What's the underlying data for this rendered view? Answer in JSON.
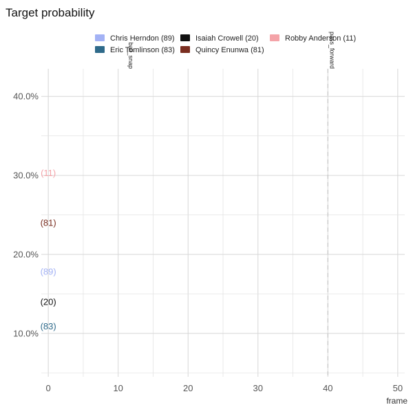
{
  "chart_data": {
    "type": "scatter",
    "title": "Target probability",
    "xlabel": "frame",
    "ylabel": "",
    "xlim": [
      -1,
      51
    ],
    "ylim": [
      0.045,
      0.435
    ],
    "x_ticks": [
      0,
      10,
      20,
      30,
      40,
      50
    ],
    "y_ticks": [
      0.1,
      0.2,
      0.3,
      0.4
    ],
    "y_tick_labels": [
      "10.0%",
      "20.0%",
      "30.0%",
      "40.0%"
    ],
    "grid": true,
    "legend_position": "top",
    "series": [
      {
        "name": "Chris Herndon (89)",
        "label": "(89)",
        "color": "#a3b2f5",
        "points": [
          {
            "x": 0,
            "y": 0.178
          }
        ]
      },
      {
        "name": "Eric Tomlinson (83)",
        "label": "(83)",
        "color": "#2e6a8a",
        "points": [
          {
            "x": 0,
            "y": 0.109
          }
        ]
      },
      {
        "name": "Isaiah Crowell (20)",
        "label": "(20)",
        "color": "#111111",
        "points": [
          {
            "x": 0,
            "y": 0.14
          }
        ]
      },
      {
        "name": "Quincy Enunwa (81)",
        "label": "(81)",
        "color": "#7a2e20",
        "points": [
          {
            "x": 0,
            "y": 0.24
          }
        ]
      },
      {
        "name": "Robby Anderson (11)",
        "label": "(11)",
        "color": "#f4a3a8",
        "points": [
          {
            "x": 0,
            "y": 0.303
          }
        ]
      }
    ],
    "annotations": [
      {
        "x": 11.5,
        "text": "ball_snap"
      },
      {
        "x": 40.3,
        "text": "pass_forward"
      }
    ],
    "vlines": [
      {
        "x": 40,
        "style": "dashed"
      }
    ]
  }
}
